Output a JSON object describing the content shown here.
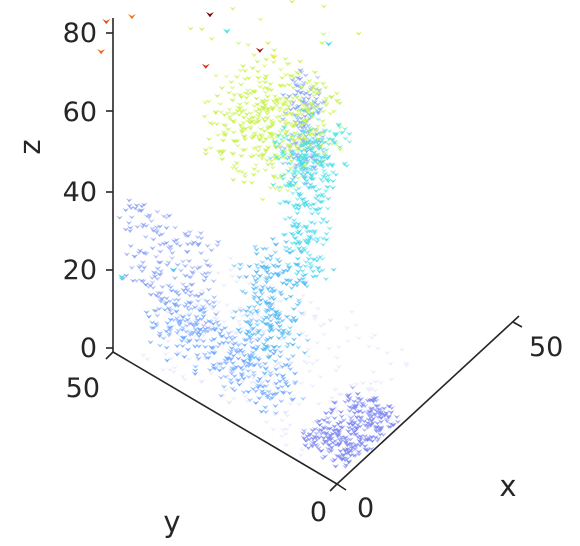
{
  "chart_data": {
    "type": "scatter3d",
    "title": "",
    "xlabel": "x",
    "ylabel": "y",
    "zlabel": "z",
    "xlim": [
      0,
      60
    ],
    "ylim": [
      0,
      60
    ],
    "zlim": [
      0,
      85
    ],
    "grid": false,
    "legend": "none",
    "colormap": "jet",
    "ticks": {
      "x": [
        {
          "value": 0,
          "label": "0"
        },
        {
          "value": 50,
          "label": "50"
        }
      ],
      "y": [
        {
          "value": 0,
          "label": "0"
        },
        {
          "value": 50,
          "label": "50"
        }
      ],
      "z": [
        {
          "value": 0,
          "label": "0"
        },
        {
          "value": 20,
          "label": "20"
        },
        {
          "value": 40,
          "label": "40"
        },
        {
          "value": 60,
          "label": "60"
        },
        {
          "value": 80,
          "label": "80"
        }
      ]
    },
    "clusters": [
      {
        "name": "floor-front-slab",
        "color": "#7f89f2",
        "count": 320,
        "x": [
          2,
          18
        ],
        "y": [
          0,
          10
        ],
        "z": [
          0,
          4
        ]
      },
      {
        "name": "floor-left-slab",
        "color": "#6fa6ff",
        "count": 300,
        "x": [
          1,
          10
        ],
        "y": [
          15,
          44
        ],
        "z": [
          3,
          14
        ]
      },
      {
        "name": "floor-faint-haze",
        "color": "#c8cdf6",
        "count": 240,
        "x": [
          0,
          30
        ],
        "y": [
          5,
          45
        ],
        "z": [
          0,
          6
        ]
      },
      {
        "name": "left-wall",
        "color": "#8ea4f4",
        "count": 200,
        "x": [
          1,
          5
        ],
        "y": [
          30,
          50
        ],
        "z": [
          15,
          38
        ]
      },
      {
        "name": "central-pillar",
        "color": "#54b8f4",
        "count": 240,
        "x": [
          12,
          22
        ],
        "y": [
          23,
          33
        ],
        "z": [
          0,
          26
        ]
      },
      {
        "name": "right-pillar",
        "color": "#4fd9ee",
        "count": 200,
        "x": [
          30,
          38
        ],
        "y": [
          30,
          36
        ],
        "z": [
          2,
          35
        ]
      },
      {
        "name": "yellow-green-blob",
        "color": "#c7f24a",
        "count": 420,
        "x": [
          18,
          38
        ],
        "y": [
          28,
          45
        ],
        "z": [
          35,
          52
        ]
      },
      {
        "name": "cyan-blob-lower",
        "color": "#52e4e0",
        "count": 160,
        "x": [
          28,
          40
        ],
        "y": [
          28,
          38
        ],
        "z": [
          24,
          40
        ]
      },
      {
        "name": "right-back-post",
        "color": "#8aa6f6",
        "count": 160,
        "x": [
          52,
          58
        ],
        "y": [
          48,
          54
        ],
        "z": [
          0,
          22
        ]
      },
      {
        "name": "scattered-light",
        "color": "#c2f455",
        "count": 26,
        "x": [
          20,
          50
        ],
        "y": [
          30,
          55
        ],
        "z": [
          40,
          58
        ]
      }
    ],
    "outliers": [
      {
        "x": 3,
        "y": 55,
        "z": 70,
        "color": "#f06a1e"
      },
      {
        "x": 7,
        "y": 57,
        "z": 73,
        "color": "#e4561a"
      },
      {
        "x": 13,
        "y": 56,
        "z": 70,
        "color": "#f07a2a"
      },
      {
        "x": 50,
        "y": 58,
        "z": 76,
        "color": "#8b0a0a"
      },
      {
        "x": 25,
        "y": 48,
        "z": 66,
        "color": "#7a0b0b"
      },
      {
        "x": 20,
        "y": 45,
        "z": 59,
        "color": "#d73a1a"
      },
      {
        "x": 29,
        "y": 40,
        "z": 59,
        "color": "#a5160f"
      },
      {
        "x": 40,
        "y": 45,
        "z": 60,
        "color": "#ff6a1f"
      },
      {
        "x": 26,
        "y": 45,
        "z": 63,
        "color": "#4fe3e4"
      },
      {
        "x": 33,
        "y": 40,
        "z": 54,
        "color": "#f5e637"
      },
      {
        "x": 46,
        "y": 38,
        "z": 48,
        "color": "#4fe3e4"
      },
      {
        "x": 0,
        "y": 48,
        "z": 20,
        "color": "#4fe3e4"
      },
      {
        "x": 7,
        "y": 42,
        "z": 20,
        "color": "#52c0f0"
      }
    ]
  }
}
